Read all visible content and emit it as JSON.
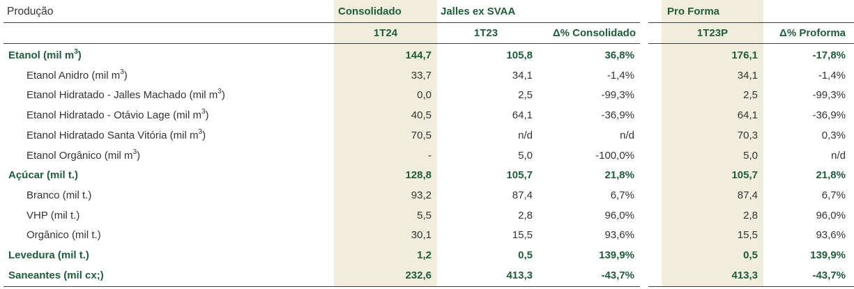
{
  "table": {
    "title": "Produção",
    "group_headers": {
      "consolidado": "Consolidado",
      "jalles": "Jalles ex SVAA",
      "proforma": "Pro Forma"
    },
    "columns": {
      "c1": "1T24",
      "c2": "1T23",
      "c3": "Δ% Consolidado",
      "c4": "1T23P",
      "c5": "Δ% Proforma"
    },
    "rows": [
      {
        "label": "Etanol (mil m",
        "sup": "3",
        "label_end": ")",
        "v1": "144,7",
        "v2": "105,8",
        "v3": "36,8%",
        "v4": "176,1",
        "v5": "-17,8%",
        "bold": true
      },
      {
        "label": "Etanol Anidro (mil m",
        "sup": "3",
        "label_end": ")",
        "v1": "33,7",
        "v2": "34,1",
        "v3": "-1,4%",
        "v4": "34,1",
        "v5": "-1,4%",
        "bold": false
      },
      {
        "label": "Etanol Hidratado - Jalles Machado (mil m",
        "sup": "3",
        "label_end": ")",
        "v1": "0,0",
        "v2": "2,5",
        "v3": "-99,3%",
        "v4": "2,5",
        "v5": "-99,3%",
        "bold": false
      },
      {
        "label": "Etanol Hidratado - Otávio Lage (mil m",
        "sup": "3",
        "label_end": ")",
        "v1": "40,5",
        "v2": "64,1",
        "v3": "-36,9%",
        "v4": "64,1",
        "v5": "-36,9%",
        "bold": false
      },
      {
        "label": "Etanol Hidratado Santa Vitória (mil m",
        "sup": "3",
        "label_end": ")",
        "v1": "70,5",
        "v2": "n/d",
        "v3": "n/d",
        "v4": "70,3",
        "v5": "0,3%",
        "bold": false
      },
      {
        "label": "Etanol Orgânico (mil m",
        "sup": "3",
        "label_end": ")",
        "v1": "-",
        "v2": "5,0",
        "v3": "-100,0%",
        "v4": "5,0",
        "v5": "n/d",
        "bold": false
      },
      {
        "label": "Açúcar (mil t.)",
        "sup": "",
        "label_end": "",
        "v1": "128,8",
        "v2": "105,7",
        "v3": "21,8%",
        "v4": "105,7",
        "v5": "21,8%",
        "bold": true
      },
      {
        "label": "Branco (mil t.)",
        "sup": "",
        "label_end": "",
        "v1": "93,2",
        "v2": "87,4",
        "v3": "6,7%",
        "v4": "87,4",
        "v5": "6,7%",
        "bold": false
      },
      {
        "label": "VHP (mil t.)",
        "sup": "",
        "label_end": "",
        "v1": "5,5",
        "v2": "2,8",
        "v3": "96,0%",
        "v4": "2,8",
        "v5": "96,0%",
        "bold": false
      },
      {
        "label": "Orgânico (mil t.)",
        "sup": "",
        "label_end": "",
        "v1": "30,1",
        "v2": "15,5",
        "v3": "93,6%",
        "v4": "15,5",
        "v5": "93,6%",
        "bold": false
      },
      {
        "label": "Levedura (mil t.)",
        "sup": "",
        "label_end": "",
        "v1": "1,2",
        "v2": "0,5",
        "v3": "139,9%",
        "v4": "0,5",
        "v5": "139,9%",
        "bold": true
      },
      {
        "label": "Saneantes (mil cx;)",
        "sup": "",
        "label_end": "",
        "v1": "232,6",
        "v2": "413,3",
        "v3": "-43,7%",
        "v4": "413,3",
        "v5": "-43,7%",
        "bold": true
      }
    ]
  },
  "colors": {
    "accent_green": "#1d5d3a",
    "shade": "#f1eddc",
    "text": "#333333"
  }
}
